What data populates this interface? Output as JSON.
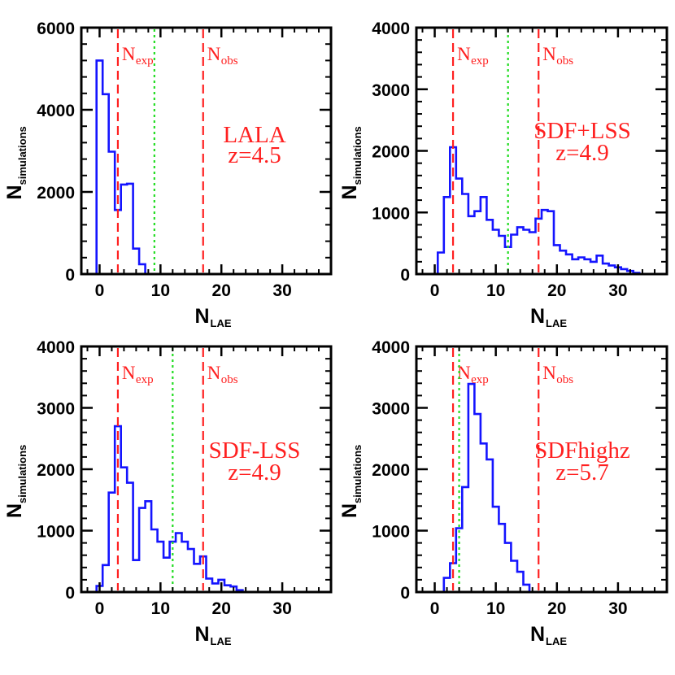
{
  "colors": {
    "histogram": "#1414ff",
    "dashed_line": "#ff2020",
    "dotted_line": "#22dd22",
    "marker_text": "#ff2020",
    "axis": "#000000"
  },
  "chart_data": [
    {
      "type": "histogram",
      "panel": "top-left",
      "xlabel": "N",
      "xlabel_sub": "LAE",
      "ylabel": "N",
      "ylabel_sub": "simulations",
      "xlim": [
        -3,
        38
      ],
      "ylim": [
        0,
        6000
      ],
      "xticks": [
        "0",
        "10",
        "20",
        "30"
      ],
      "yticks": [
        "0",
        "2000",
        "4000",
        "6000"
      ],
      "annotation": [
        "LALA",
        "z=4.5"
      ],
      "vlines": [
        {
          "label": "N",
          "sub": "exp",
          "x": 3,
          "style": "dashed"
        },
        {
          "label": "N",
          "sub": "obs",
          "x": 17,
          "style": "dashed"
        },
        {
          "x": 9,
          "style": "dotted"
        }
      ],
      "bins": {
        "edges": [
          -0.5,
          0.5,
          1.5,
          2.5,
          3.5,
          4.5,
          5.5,
          6.5,
          7.5,
          8.5
        ],
        "counts": [
          5200,
          4380,
          2980,
          1560,
          2180,
          2200,
          620,
          240,
          0
        ]
      }
    },
    {
      "type": "histogram",
      "panel": "top-right",
      "xlabel": "N",
      "xlabel_sub": "LAE",
      "ylabel": "N",
      "ylabel_sub": "simulations",
      "xlim": [
        -3,
        38
      ],
      "ylim": [
        0,
        4000
      ],
      "xticks": [
        "0",
        "10",
        "20",
        "30"
      ],
      "yticks": [
        "0",
        "1000",
        "2000",
        "3000",
        "4000"
      ],
      "annotation": [
        "SDF+LSS",
        "z=4.9"
      ],
      "vlines": [
        {
          "label": "N",
          "sub": "exp",
          "x": 3,
          "style": "dashed"
        },
        {
          "label": "N",
          "sub": "obs",
          "x": 17,
          "style": "dashed"
        },
        {
          "x": 12,
          "style": "dotted"
        }
      ],
      "bins": {
        "edges": [
          -0.5,
          0.5,
          1.5,
          2.5,
          3.5,
          4.5,
          5.5,
          6.5,
          7.5,
          8.5,
          9.5,
          10.5,
          11.5,
          12.5,
          13.5,
          14.5,
          15.5,
          16.5,
          17.5,
          18.5,
          19.5,
          20.5,
          21.5,
          22.5,
          23.5,
          24.5,
          25.5,
          26.5,
          27.5,
          28.5,
          29.5,
          30.5,
          31.5,
          32.5,
          33.5,
          34.5
        ],
        "counts": [
          0,
          350,
          1250,
          2060,
          1550,
          1300,
          940,
          1020,
          1250,
          880,
          720,
          620,
          440,
          640,
          760,
          720,
          680,
          900,
          1040,
          1020,
          470,
          380,
          320,
          240,
          270,
          240,
          200,
          300,
          170,
          140,
          110,
          80,
          50,
          20,
          0
        ]
      }
    },
    {
      "type": "histogram",
      "panel": "bottom-left",
      "xlabel": "N",
      "xlabel_sub": "LAE",
      "ylabel": "N",
      "ylabel_sub": "simulations",
      "xlim": [
        -3,
        38
      ],
      "ylim": [
        0,
        4000
      ],
      "xticks": [
        "0",
        "10",
        "20",
        "30"
      ],
      "yticks": [
        "0",
        "1000",
        "2000",
        "3000",
        "4000"
      ],
      "annotation": [
        "SDF-LSS",
        "z=4.9"
      ],
      "vlines": [
        {
          "label": "N",
          "sub": "exp",
          "x": 3,
          "style": "dashed"
        },
        {
          "label": "N",
          "sub": "obs",
          "x": 17,
          "style": "dashed"
        },
        {
          "x": 12,
          "style": "dotted"
        }
      ],
      "bins": {
        "edges": [
          -0.5,
          0.5,
          1.5,
          2.5,
          3.5,
          4.5,
          5.5,
          6.5,
          7.5,
          8.5,
          9.5,
          10.5,
          11.5,
          12.5,
          13.5,
          14.5,
          15.5,
          16.5,
          17.5,
          18.5,
          19.5,
          20.5,
          21.5,
          22.5,
          23.5,
          24.5
        ],
        "counts": [
          100,
          440,
          1620,
          2700,
          2030,
          1780,
          520,
          1370,
          1480,
          1020,
          820,
          560,
          820,
          960,
          820,
          700,
          460,
          580,
          220,
          140,
          200,
          110,
          90,
          30,
          0
        ]
      }
    },
    {
      "type": "histogram",
      "panel": "bottom-right",
      "xlabel": "N",
      "xlabel_sub": "LAE",
      "ylabel": "N",
      "ylabel_sub": "simulations",
      "xlim": [
        -3,
        38
      ],
      "ylim": [
        0,
        4000
      ],
      "xticks": [
        "0",
        "10",
        "20",
        "30"
      ],
      "yticks": [
        "0",
        "1000",
        "2000",
        "3000",
        "4000"
      ],
      "annotation": [
        "SDFhighz",
        "z=5.7"
      ],
      "vlines": [
        {
          "label": "N",
          "sub": "exp",
          "x": 3,
          "style": "dashed"
        },
        {
          "label": "N",
          "sub": "obs",
          "x": 17,
          "style": "dashed"
        },
        {
          "x": 4,
          "style": "dotted"
        }
      ],
      "bins": {
        "edges": [
          1.5,
          2.5,
          3.5,
          4.5,
          5.5,
          6.5,
          7.5,
          8.5,
          9.5,
          10.5,
          11.5,
          12.5,
          13.5,
          14.5,
          15.5,
          16.5
        ],
        "counts": [
          230,
          470,
          1040,
          1710,
          3390,
          2900,
          2420,
          2160,
          1390,
          1110,
          800,
          510,
          330,
          120,
          0
        ]
      }
    }
  ]
}
